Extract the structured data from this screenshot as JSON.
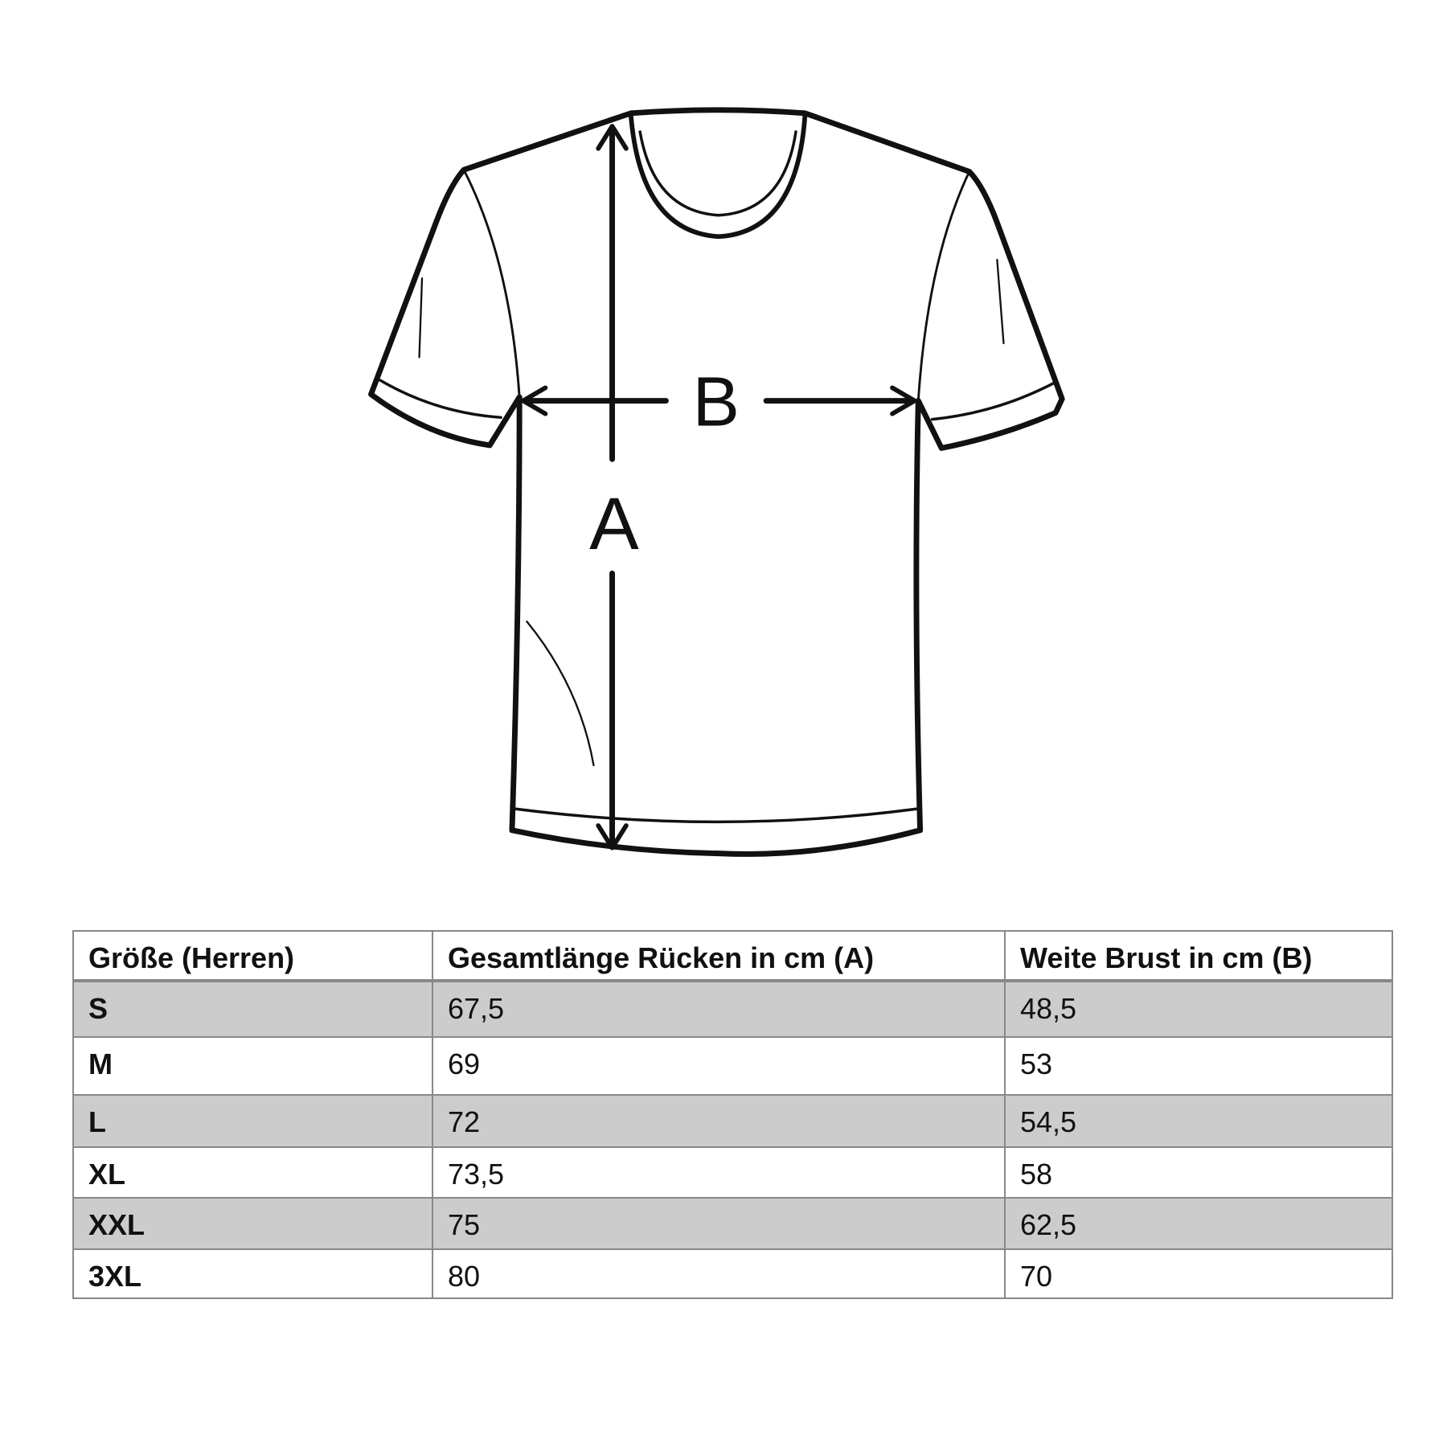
{
  "diagram": {
    "label_a": "A",
    "label_b": "B"
  },
  "table": {
    "headers": [
      "Größe (Herren)",
      "Gesamtlänge Rücken in cm (A)",
      "Weite Brust in cm (B)"
    ],
    "rows": [
      [
        "S",
        "67,5",
        "48,5"
      ],
      [
        "M",
        "69",
        "53"
      ],
      [
        "L",
        "72",
        "54,5"
      ],
      [
        "XL",
        "73,5",
        "58"
      ],
      [
        "XXL",
        "75",
        "62,5"
      ],
      [
        "3XL",
        "80",
        "70"
      ]
    ],
    "shade_color": "#cccccc"
  }
}
